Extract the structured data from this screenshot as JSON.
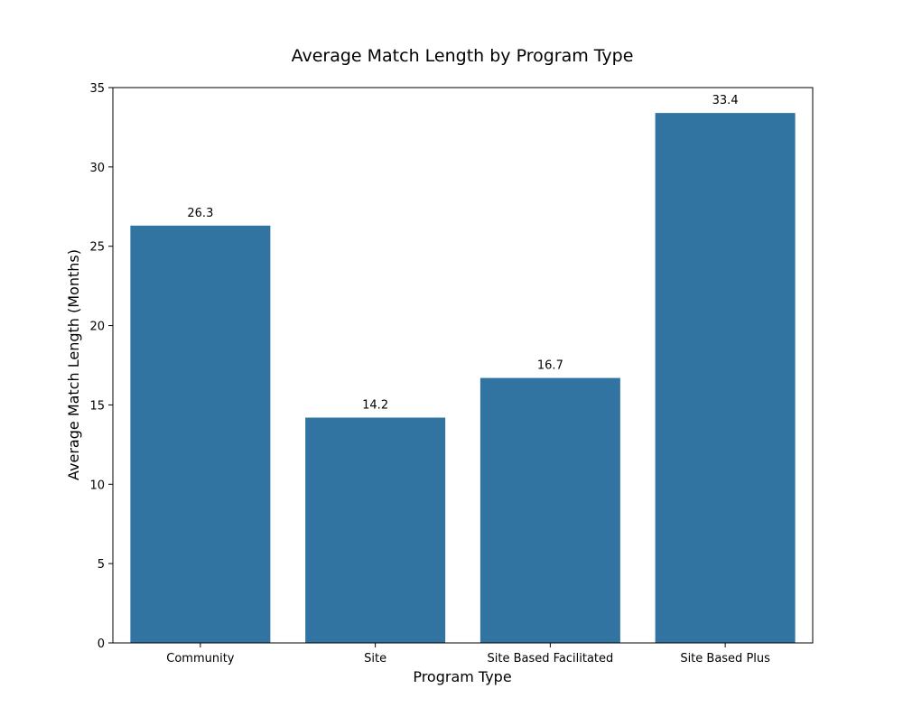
{
  "chart_data": {
    "type": "bar",
    "title": "Average Match Length by Program Type",
    "xlabel": "Program Type",
    "ylabel": "Average Match Length (Months)",
    "categories": [
      "Community",
      "Site",
      "Site Based Facilitated",
      "Site Based Plus"
    ],
    "values": [
      26.3,
      14.2,
      16.7,
      33.4
    ],
    "data_labels": [
      "26.3",
      "14.2",
      "16.7",
      "33.4"
    ],
    "ylim": [
      0,
      35
    ],
    "yticks": [
      0,
      5,
      10,
      15,
      20,
      25,
      30,
      35
    ],
    "grid": false,
    "legend": "none",
    "bar_color": "#3274a1"
  }
}
